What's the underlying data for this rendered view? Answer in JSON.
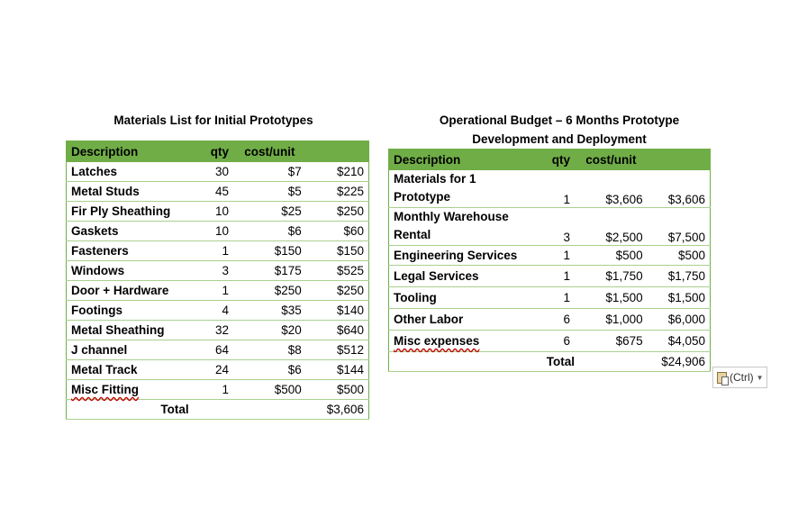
{
  "materials": {
    "title": "Materials List for Initial Prototypes",
    "headers": [
      "Description",
      "qty",
      "cost/unit",
      ""
    ],
    "rows": [
      [
        "Latches",
        "30",
        "$7",
        "$210"
      ],
      [
        "Metal Studs",
        "45",
        "$5",
        "$225"
      ],
      [
        "Fir Ply Sheathing",
        "10",
        "$25",
        "$250"
      ],
      [
        "Gaskets",
        "10",
        "$6",
        "$60"
      ],
      [
        "Fasteners",
        "1",
        "$150",
        "$150"
      ],
      [
        "Windows",
        "3",
        "$175",
        "$525"
      ],
      [
        "Door + Hardware",
        "1",
        "$250",
        "$250"
      ],
      [
        "Footings",
        "4",
        "$35",
        "$140"
      ],
      [
        "Metal Sheathing",
        "32",
        "$20",
        "$640"
      ],
      [
        "J channel",
        "64",
        "$8",
        "$512"
      ],
      [
        "Metal Track",
        "24",
        "$6",
        "$144"
      ],
      [
        "Misc Fitting",
        "1",
        "$500",
        "$500"
      ]
    ],
    "total_label": "Total",
    "total_value": "$3,606"
  },
  "budget": {
    "title_line1": "Operational Budget – 6 Months Prototype",
    "title_line2": "Development and Deployment",
    "headers": [
      "Description",
      "qty",
      "cost/unit",
      ""
    ],
    "rows": [
      [
        "Materials for 1",
        "Prototype",
        "1",
        "$3,606",
        "$3,606"
      ],
      [
        "Monthly Warehouse",
        "Rental",
        "3",
        "$2,500",
        "$7,500"
      ],
      [
        "Engineering Services",
        "",
        "1",
        "$500",
        "$500"
      ],
      [
        "Legal Services",
        "",
        "1",
        "$1,750",
        "$1,750"
      ],
      [
        "Tooling",
        "",
        "1",
        "$1,500",
        "$1,500"
      ],
      [
        "Other Labor",
        "",
        "6",
        "$1,000",
        "$6,000"
      ],
      [
        "Misc expenses",
        "",
        "6",
        "$675",
        "$4,050"
      ]
    ],
    "total_label": "Total",
    "total_value": "$24,906"
  },
  "paste_options": {
    "label": "(Ctrl)",
    "icon": "clipboard-icon"
  },
  "colors": {
    "header_green": "#70AD47",
    "row_border": "#A9D08E"
  }
}
